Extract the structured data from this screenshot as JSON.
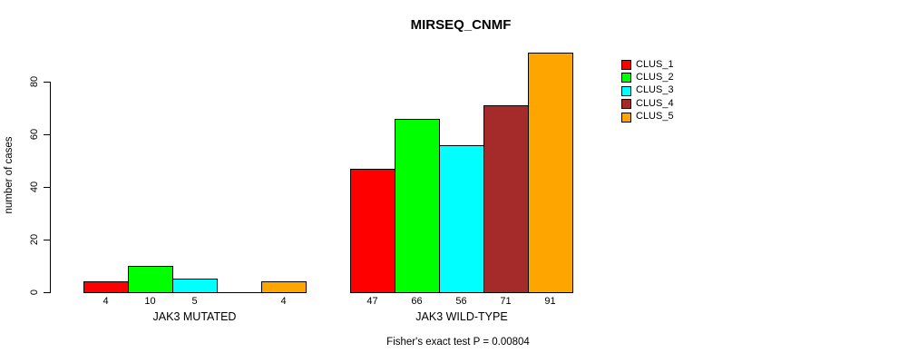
{
  "title": "MIRSEQ_CNMF",
  "y_axis": {
    "label": "number of cases",
    "tick_labels": [
      "0",
      "20",
      "40",
      "60",
      "80"
    ]
  },
  "footnote": "Fisher's exact test P = 0.00804",
  "legend": {
    "items": [
      {
        "label": "CLUS_1",
        "color": "#FF0000"
      },
      {
        "label": "CLUS_2",
        "color": "#00FF00"
      },
      {
        "label": "CLUS_3",
        "color": "#00FFFF"
      },
      {
        "label": "CLUS_4",
        "color": "#A52A2A"
      },
      {
        "label": "CLUS_5",
        "color": "#FFA500"
      }
    ]
  },
  "chart_data": {
    "type": "bar",
    "title": "MIRSEQ_CNMF",
    "xlabel": "",
    "ylabel": "number of cases",
    "ylim": [
      0,
      95
    ],
    "yticks": [
      0,
      20,
      40,
      60,
      80
    ],
    "grid": false,
    "legend_position": "right",
    "series": [
      "CLUS_1",
      "CLUS_2",
      "CLUS_3",
      "CLUS_4",
      "CLUS_5"
    ],
    "series_colors": [
      "#FF0000",
      "#00FF00",
      "#00FFFF",
      "#A52A2A",
      "#FFA500"
    ],
    "groups": [
      {
        "label": "JAK3 MUTATED",
        "values": [
          4,
          10,
          5,
          0,
          4
        ],
        "bar_labels": [
          "4",
          "10",
          "5",
          "",
          "4"
        ]
      },
      {
        "label": "JAK3 WILD-TYPE",
        "values": [
          47,
          66,
          56,
          71,
          91
        ],
        "bar_labels": [
          "47",
          "66",
          "56",
          "71",
          "91"
        ]
      }
    ],
    "annotation": "Fisher's exact test P = 0.00804"
  }
}
